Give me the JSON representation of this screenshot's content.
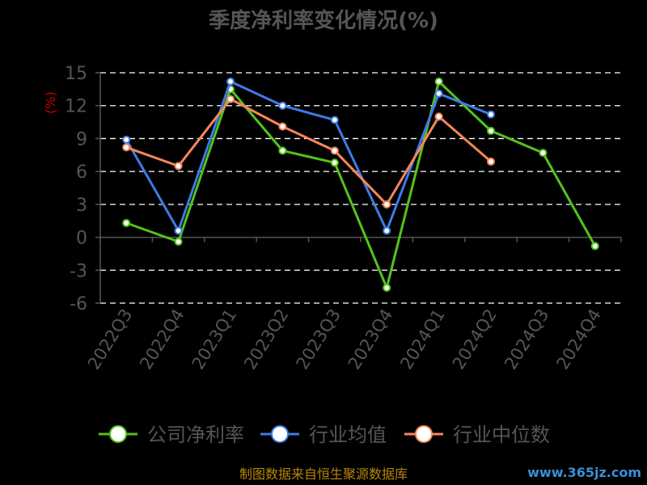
{
  "chart_data": {
    "type": "line",
    "title": "季度净利率变化情况(%)",
    "ylabel": "(%)",
    "categories": [
      "2022Q3",
      "2022Q4",
      "2023Q1",
      "2023Q2",
      "2023Q3",
      "2023Q4",
      "2024Q1",
      "2024Q2",
      "2024Q3",
      "2024Q4"
    ],
    "yticks": [
      "15",
      "12",
      "9",
      "6",
      "3",
      "0",
      "-3",
      "-6"
    ],
    "ylim": [
      -6,
      15
    ],
    "grid": true,
    "legend_position": "bottom",
    "series": [
      {
        "name": "公司净利率",
        "color": "#52c41a",
        "values": [
          1.3,
          -0.4,
          13.5,
          7.9,
          6.8,
          -4.6,
          14.2,
          9.7,
          7.7,
          -0.8
        ]
      },
      {
        "name": "行业均值",
        "color": "#3d7be6",
        "values": [
          8.9,
          0.6,
          14.2,
          12.0,
          10.7,
          0.6,
          13.1,
          11.2,
          null,
          null
        ]
      },
      {
        "name": "行业中位数",
        "color": "#f7865a",
        "values": [
          8.2,
          6.5,
          12.6,
          10.1,
          7.9,
          3.0,
          11.0,
          6.9,
          null,
          null
        ]
      }
    ]
  },
  "footer": {
    "source": "制图数据来自恒生聚源数据库",
    "watermark": "www.365jz.com"
  }
}
